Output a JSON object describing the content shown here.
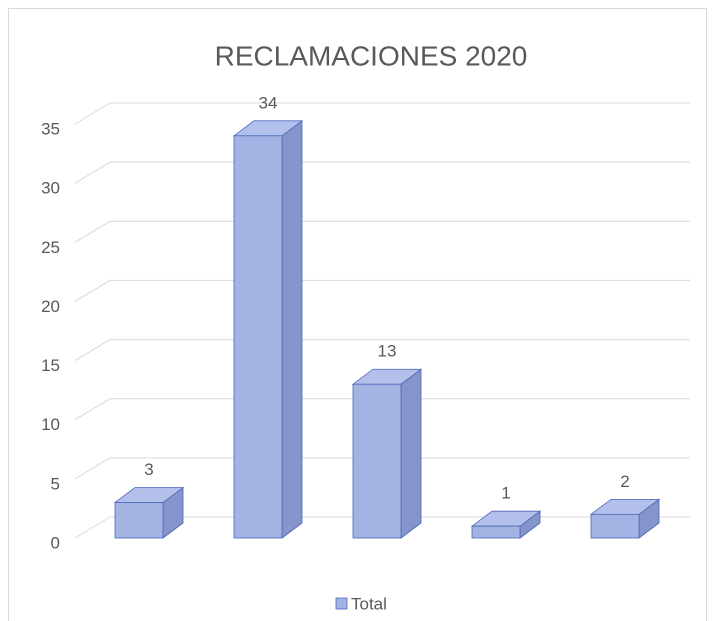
{
  "chart_data": {
    "type": "bar3d",
    "title": "RECLAMACIONES 2020",
    "categories": [
      null,
      null,
      null,
      null,
      null
    ],
    "series": [
      {
        "name": "Total",
        "color": "#a4b3e3",
        "values": [
          3,
          34,
          13,
          1,
          2
        ]
      }
    ],
    "ylim": [
      0,
      35
    ],
    "yticks": [
      0,
      5,
      10,
      15,
      20,
      25,
      30,
      35
    ],
    "grid": true,
    "legend": "bottom",
    "data_labels": true
  }
}
